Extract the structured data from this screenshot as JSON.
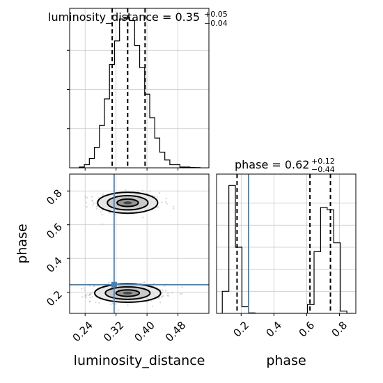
{
  "chart_data": {
    "type": "corner",
    "parameters": [
      "luminosity_distance",
      "phase"
    ],
    "truths": {
      "luminosity_distance": 0.315,
      "phase": 0.245
    },
    "truth_color": "#4682b4",
    "line_color": "#000000",
    "panels": [
      {
        "id": "hist_luminosity_distance",
        "type": "histogram",
        "parameter": "luminosity_distance",
        "title": {
          "main": "luminosity_distance = 0.35",
          "sup": "+0.05",
          "sub": "−0.04"
        },
        "xlim": [
          0.2,
          0.56
        ],
        "bin_edges": [
          0.225,
          0.238,
          0.251,
          0.264,
          0.277,
          0.29,
          0.303,
          0.316,
          0.329,
          0.342,
          0.355,
          0.368,
          0.381,
          0.394,
          0.407,
          0.42,
          0.433,
          0.446,
          0.459,
          0.472,
          0.485,
          0.498,
          0.511,
          0.524,
          0.537
        ],
        "counts": [
          0.005,
          0.02,
          0.06,
          0.13,
          0.27,
          0.44,
          0.66,
          0.81,
          0.95,
          0.96,
          0.94,
          0.78,
          0.64,
          0.47,
          0.32,
          0.19,
          0.1,
          0.05,
          0.02,
          0.02,
          0.005,
          0.005,
          0.002,
          0.001
        ],
        "quantiles": [
          0.31,
          0.35,
          0.395
        ],
        "grid": true
      },
      {
        "id": "hist_phase",
        "type": "histogram",
        "parameter": "phase",
        "title": {
          "main": "phase = 0.62",
          "sup": "+0.12",
          "sub": "−0.44"
        },
        "xlim": [
          0.05,
          0.9
        ],
        "xticks": [
          "0.2",
          "0.4",
          "0.6",
          "0.8"
        ],
        "xticks_values": [
          0.2,
          0.4,
          0.6,
          0.8
        ],
        "xlabel": "phase",
        "bin_edges": [
          0.085,
          0.125,
          0.165,
          0.205,
          0.245,
          0.285,
          0.325,
          0.365,
          0.405,
          0.445,
          0.485,
          0.525,
          0.565,
          0.605,
          0.645,
          0.685,
          0.725,
          0.765,
          0.805,
          0.845,
          0.885
        ],
        "counts": [
          0.1,
          0.58,
          0.3,
          0.03,
          0.002,
          0.0,
          0.0,
          0.0,
          0.0,
          0.0,
          0.0,
          0.0,
          0.0,
          0.04,
          0.28,
          0.48,
          0.47,
          0.32,
          0.01,
          0.0
        ],
        "quantiles": [
          0.175,
          0.62,
          0.745
        ],
        "grid": true
      },
      {
        "id": "scatter_luminosity_distance_vs_phase",
        "type": "2d-density",
        "xparameter": "luminosity_distance",
        "yparameter": "phase",
        "xlim": [
          0.2,
          0.56
        ],
        "ylim": [
          0.075,
          0.9
        ],
        "xticks": [
          "0.24",
          "0.32",
          "0.40",
          "0.48"
        ],
        "xticks_values": [
          0.24,
          0.32,
          0.4,
          0.48
        ],
        "yticks": [
          "0.2",
          "0.4",
          "0.6",
          "0.8"
        ],
        "yticks_values": [
          0.2,
          0.4,
          0.6,
          0.8
        ],
        "xlabel": "luminosity_distance",
        "ylabel": "phase",
        "modes": [
          {
            "x_center": 0.35,
            "y_center": 0.73,
            "x_spread": 0.05,
            "y_spread": 0.04
          },
          {
            "x_center": 0.35,
            "y_center": 0.195,
            "x_spread": 0.055,
            "y_spread": 0.035
          }
        ],
        "grid": true
      }
    ]
  }
}
